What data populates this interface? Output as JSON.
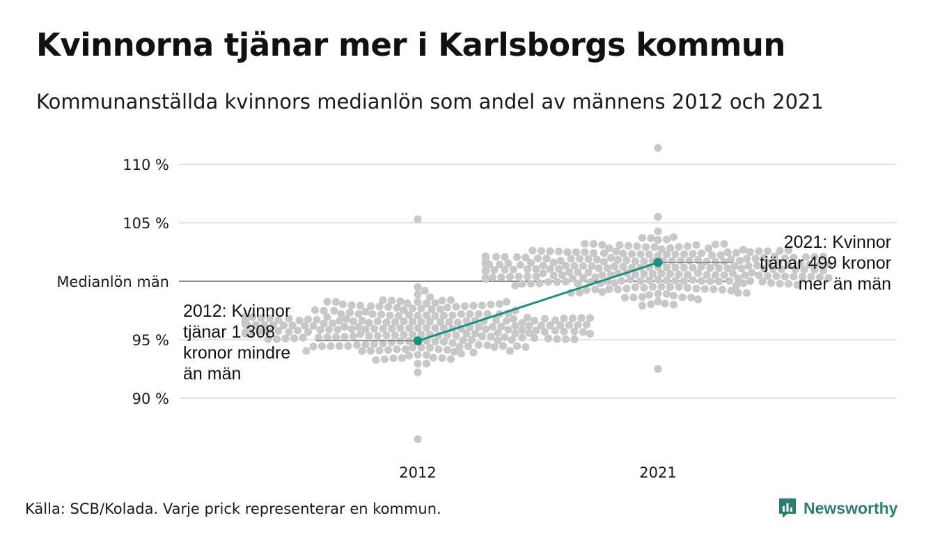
{
  "title": "Kvinnorna tjänar mer i Karlsborgs kommun",
  "subtitle": "Kommunanställda kvinnors medianlön som andel av männens 2012 och 2021",
  "source": "Källa: SCB/Kolada. Varje prick representerar en kommun.",
  "brand": {
    "name": "Newsworthy",
    "logo_icon": "newsworthy-logo-icon"
  },
  "colors": {
    "dots": "#c8c8c8",
    "highlight": "#1a9080",
    "grid": "#e3e3e3",
    "reference": "#444444",
    "brand": "#2e7d6e"
  },
  "chart_data": {
    "type": "scatter",
    "subtype": "beeswarm",
    "categories": [
      "2012",
      "2021"
    ],
    "y_ticks": [
      {
        "value": 90,
        "label": "90 %"
      },
      {
        "value": 95,
        "label": "95 %"
      },
      {
        "value": 100,
        "label": "Medianlön män"
      },
      {
        "value": 105,
        "label": "105 %"
      },
      {
        "value": 110,
        "label": "110 %"
      }
    ],
    "ylim": [
      86,
      112
    ],
    "reference_line": {
      "value": 100,
      "label": "Medianlön män"
    },
    "highlight": {
      "name": "Karlsborg",
      "points": [
        {
          "x": "2012",
          "y": 94.9
        },
        {
          "x": "2021",
          "y": 101.6
        }
      ]
    },
    "annotations": [
      {
        "x": "2012",
        "lines": [
          "2012: Kvinnor",
          "tjänar 1 308",
          "kronor mindre",
          "än män"
        ]
      },
      {
        "x": "2021",
        "lines": [
          "2021: Kvinnor",
          "tjänar 499 kronor",
          "mer än män"
        ]
      }
    ],
    "distributions": [
      {
        "name": "2012",
        "min": 86.5,
        "max": 105.3,
        "count": 290,
        "center": 96.0
      },
      {
        "name": "2021",
        "min": 92.5,
        "max": 111.4,
        "count": 290,
        "center": 101.2
      }
    ]
  }
}
